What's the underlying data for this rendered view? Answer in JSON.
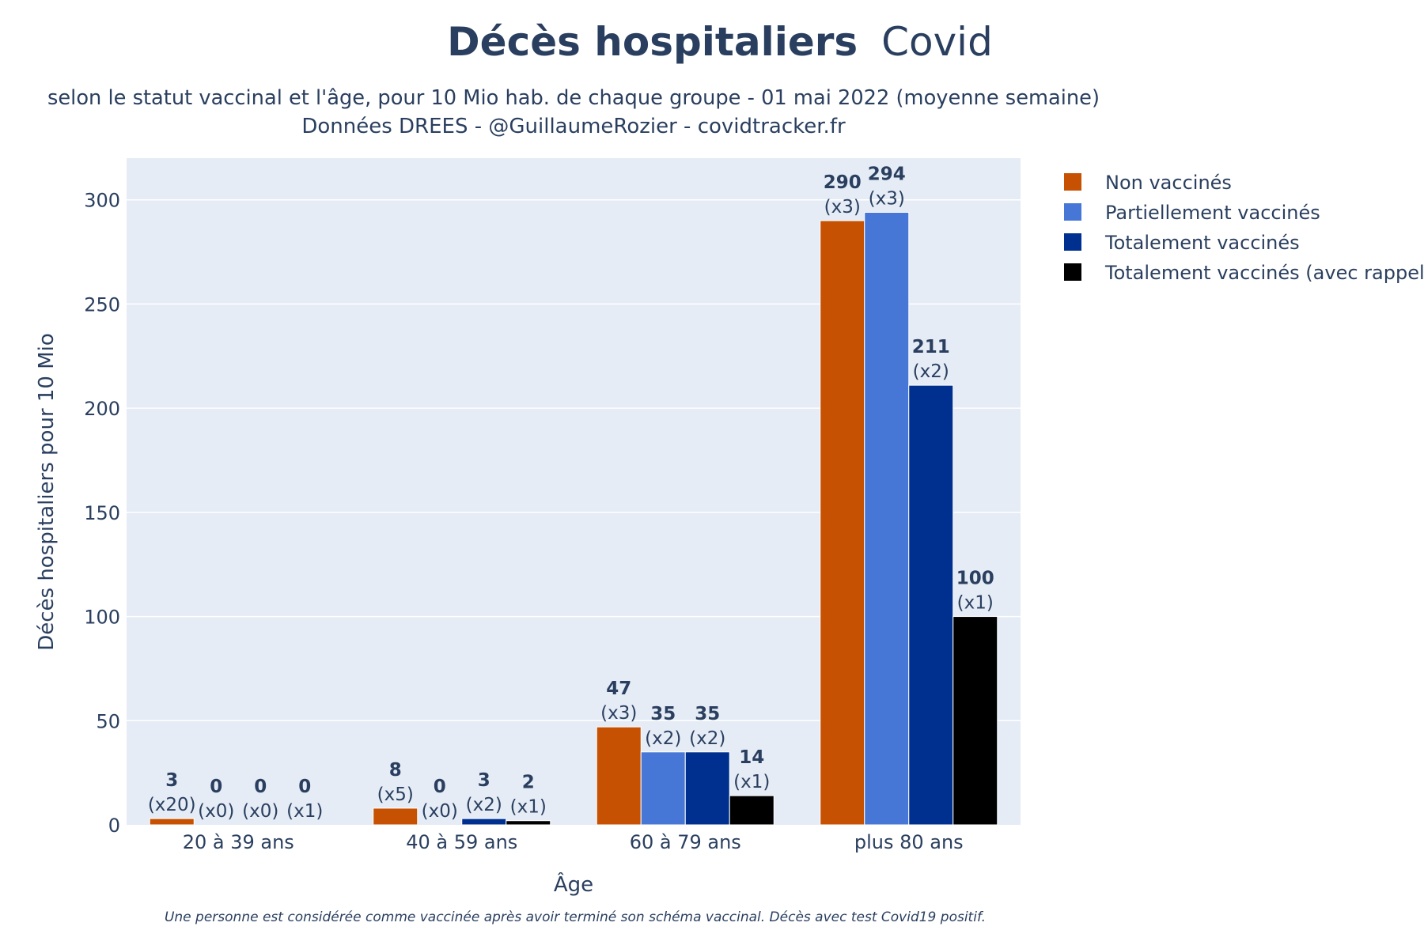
{
  "title": {
    "bold": "Décès hospitaliers",
    "rest": "Covid",
    "subtitle_line1": "selon le statut vaccinal et l'âge, pour 10 Mio hab. de chaque groupe - 01 mai 2022 (moyenne semaine)",
    "subtitle_line2": "Données DREES - @GuillaumeRozier - covidtracker.fr"
  },
  "footnote": "Une personne est considérée comme vaccinée après avoir terminé son schéma vaccinal. Décès avec test Covid19 positif.",
  "chart_data": {
    "type": "bar",
    "xlabel": "Âge",
    "ylabel": "Décès hospitaliers pour 10 Mio",
    "ylim": [
      0,
      320
    ],
    "yticks": [
      0,
      50,
      100,
      150,
      200,
      250,
      300
    ],
    "grid": true,
    "legend_position": "top-right, outside plot",
    "categories": [
      "20 à 39 ans",
      "40 à 59 ans",
      "60 à 79 ans",
      "plus 80 ans"
    ],
    "series": [
      {
        "name": "Non vaccinés",
        "color": "#c65102",
        "values": [
          3,
          8,
          47,
          290
        ],
        "labels": [
          "3",
          "8",
          "47",
          "290"
        ],
        "ratios": [
          "(x20)",
          "(x5)",
          "(x3)",
          "(x3)"
        ]
      },
      {
        "name": "Partiellement vaccinés",
        "color": "#4777d6",
        "values": [
          0,
          0,
          35,
          294
        ],
        "labels": [
          "0",
          "0",
          "35",
          "294"
        ],
        "ratios": [
          "(x0)",
          "(x0)",
          "(x2)",
          "(x3)"
        ]
      },
      {
        "name": "Totalement vaccinés",
        "color": "#00308f",
        "values": [
          0,
          3,
          35,
          211
        ],
        "labels": [
          "0",
          "3",
          "35",
          "211"
        ],
        "ratios": [
          "(x0)",
          "(x2)",
          "(x2)",
          "(x2)"
        ]
      },
      {
        "name": "Totalement vaccinés (avec rappel)",
        "color": "#000000",
        "values": [
          0,
          2,
          14,
          100
        ],
        "labels": [
          "0",
          "2",
          "14",
          "100"
        ],
        "ratios": [
          "(x1)",
          "(x1)",
          "(x1)",
          "(x1)"
        ]
      }
    ]
  }
}
